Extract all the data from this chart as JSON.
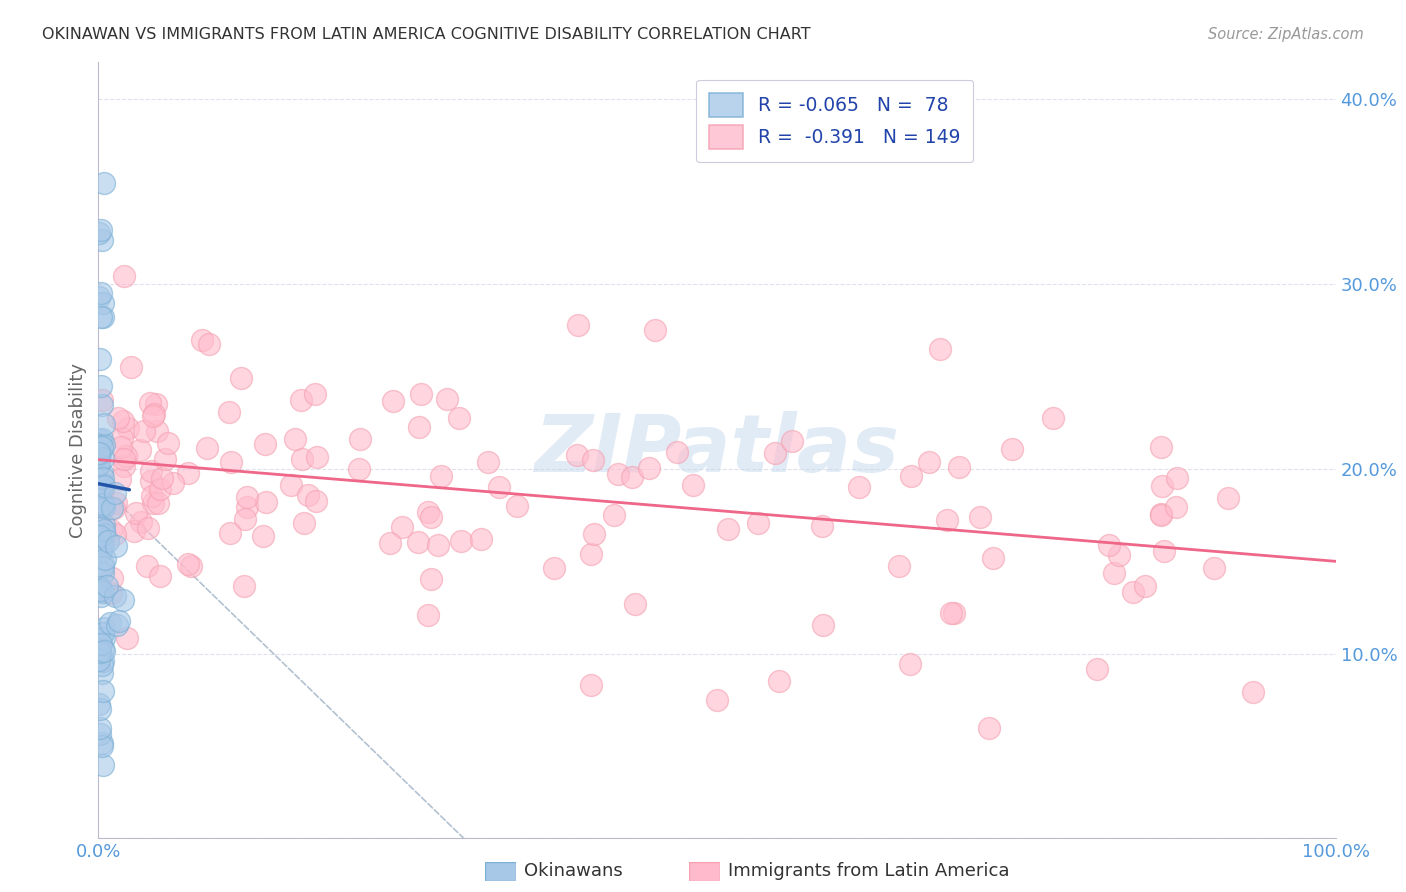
{
  "title": "OKINAWAN VS IMMIGRANTS FROM LATIN AMERICA COGNITIVE DISABILITY CORRELATION CHART",
  "source": "Source: ZipAtlas.com",
  "ylabel": "Cognitive Disability",
  "xlim": [
    0.0,
    1.0
  ],
  "ylim": [
    0.0,
    0.42
  ],
  "watermark": "ZIPatlas",
  "blue_color": "#7BAFD4",
  "pink_color": "#F4A0B0",
  "blue_fill": "#A8C8E8",
  "pink_fill": "#FFBBCC",
  "blue_line_color": "#2255AA",
  "pink_line_color": "#EE6688",
  "dashed_line_color": "#AABBCC",
  "title_color": "#333333",
  "axis_tick_color": "#5599DD",
  "background_color": "#FFFFFF",
  "grid_color": "#DDDDEE",
  "legend_r1_color": "#2255AA",
  "legend_r2_color": "#EE6688",
  "legend_n_color": "#2255AA"
}
